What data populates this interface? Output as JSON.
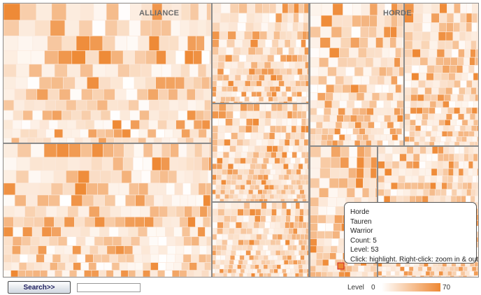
{
  "treemap": {
    "groups": [
      {
        "name": "ALLIANCE"
      },
      {
        "name": "HORDE"
      }
    ],
    "highlight_color": "#ee8833",
    "low_color": "#ffffff",
    "divider_color": "#8a8a8a"
  },
  "tooltip": {
    "faction": "Horde",
    "race": "Tauren",
    "class": "Warrior",
    "count": "Count: 5",
    "level": "Level: 53",
    "hint": "Click: highlight. Right-click: zoom in & out"
  },
  "controls": {
    "search_label": "Search>>",
    "search_value": ""
  },
  "legend": {
    "label": "Level",
    "min": "0",
    "max": "70"
  }
}
